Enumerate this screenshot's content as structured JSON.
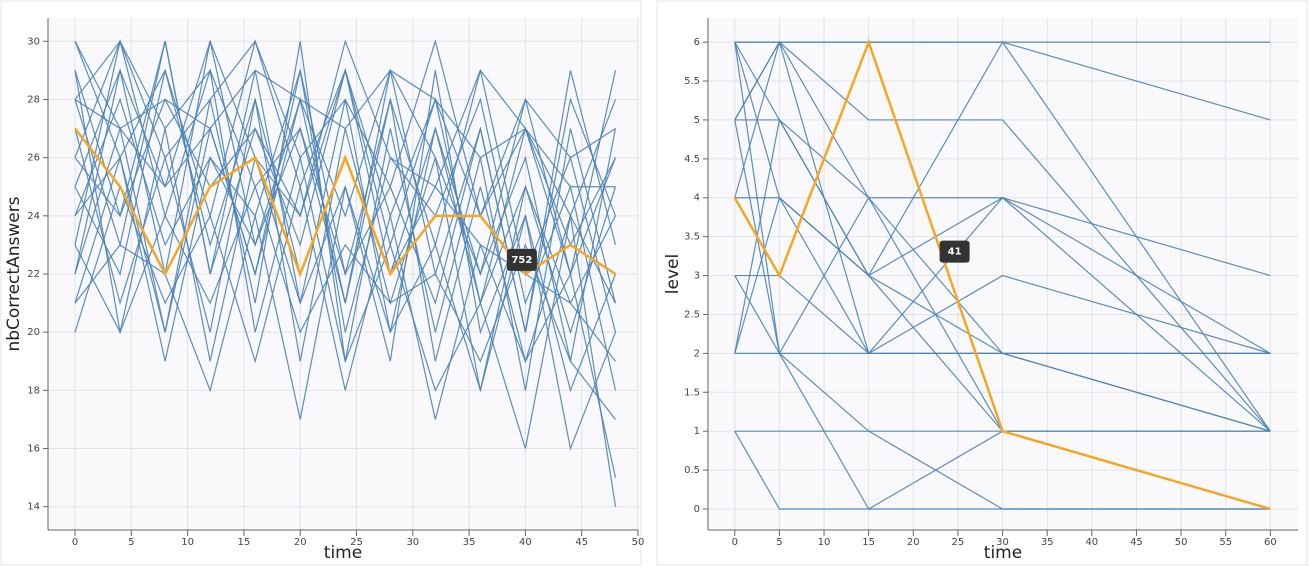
{
  "chart_data": [
    {
      "type": "line",
      "x_label": "time",
      "y_label": "nbCorrectAnswers",
      "x": [
        0,
        4,
        8,
        12,
        16,
        20,
        24,
        28,
        32,
        36,
        40,
        44,
        48
      ],
      "xlim": [
        -2.4,
        50
      ],
      "xticks": [
        0,
        5,
        10,
        15,
        20,
        25,
        30,
        35,
        40,
        45,
        50
      ],
      "ylim": [
        13.2,
        30.8
      ],
      "yticks": [
        14,
        16,
        18,
        20,
        22,
        24,
        26,
        28,
        30
      ],
      "grid": true,
      "color": "#4a82b4",
      "series": [
        {
          "values": [
            30,
            26,
            29,
            24,
            30,
            25,
            29,
            23,
            28,
            24,
            27,
            22,
            29
          ]
        },
        {
          "values": [
            28,
            23,
            30,
            22,
            29,
            21,
            28,
            20,
            27,
            22,
            26,
            19,
            27
          ]
        },
        {
          "values": [
            25,
            29,
            22,
            30,
            23,
            28,
            21,
            29,
            22,
            27,
            20,
            28,
            24
          ]
        },
        {
          "values": [
            22,
            27,
            20,
            28,
            21,
            30,
            19,
            27,
            20,
            26,
            18,
            27,
            21
          ]
        },
        {
          "values": [
            29,
            24,
            28,
            25,
            27,
            23,
            29,
            24,
            28,
            21,
            27,
            23,
            26
          ]
        },
        {
          "values": [
            26,
            30,
            24,
            29,
            25,
            27,
            22,
            28,
            23,
            29,
            22,
            26,
            20
          ]
        },
        {
          "values": [
            21,
            26,
            20,
            27,
            22,
            29,
            20,
            26,
            24,
            28,
            21,
            25,
            18
          ]
        },
        {
          "values": [
            27,
            21,
            26,
            20,
            28,
            19,
            27,
            21,
            26,
            18,
            25,
            20,
            25
          ]
        },
        {
          "values": [
            24,
            28,
            23,
            26,
            24,
            29,
            22,
            25,
            21,
            27,
            20,
            29,
            23
          ]
        },
        {
          "values": [
            30,
            27,
            25,
            30,
            26,
            24,
            30,
            26,
            25,
            29,
            27,
            24,
            28
          ]
        },
        {
          "values": [
            23,
            20,
            27,
            19,
            26,
            21,
            25,
            19,
            29,
            20,
            24,
            18,
            22
          ]
        },
        {
          "values": [
            20,
            25,
            21,
            24,
            19,
            25,
            18,
            24,
            17,
            23,
            19,
            22,
            15
          ]
        },
        {
          "values": [
            28,
            30,
            26,
            28,
            30,
            26,
            28,
            25,
            30,
            24,
            28,
            26,
            27
          ]
        },
        {
          "values": [
            25,
            22,
            29,
            23,
            28,
            22,
            26,
            22,
            25,
            23,
            22,
            21,
            19
          ]
        },
        {
          "values": [
            22,
            29,
            25,
            27,
            22,
            28,
            24,
            29,
            26,
            22,
            28,
            22,
            26
          ]
        },
        {
          "values": [
            29,
            20,
            24,
            21,
            25,
            20,
            23,
            21,
            22,
            19,
            23,
            19,
            17
          ]
        },
        {
          "values": [
            26,
            24,
            30,
            22,
            27,
            24,
            29,
            22,
            27,
            21,
            25,
            21,
            24
          ]
        },
        {
          "values": [
            24,
            26,
            19,
            26,
            23,
            27,
            21,
            28,
            19,
            25,
            19,
            24,
            14
          ]
        },
        {
          "values": [
            21,
            23,
            22,
            18,
            24,
            17,
            25,
            20,
            23,
            18,
            24,
            16,
            20
          ]
        },
        {
          "values": [
            28,
            27,
            28,
            27,
            29,
            28,
            27,
            29,
            28,
            26,
            27,
            25,
            25
          ]
        },
        {
          "values": [
            23,
            30,
            27,
            29,
            20,
            26,
            19,
            23,
            18,
            21,
            16,
            24,
            21
          ]
        },
        {
          "name": "752",
          "color": "#f5a623",
          "values": [
            27,
            25,
            22,
            25,
            26,
            22,
            26,
            22,
            24,
            24,
            22,
            23,
            22
          ]
        }
      ]
    },
    {
      "type": "line",
      "x_label": "time",
      "y_label": "level",
      "x": [
        0,
        5,
        15,
        30,
        60
      ],
      "xlim": [
        -3,
        63.1
      ],
      "xticks": [
        0,
        5,
        10,
        15,
        20,
        25,
        30,
        35,
        40,
        45,
        50,
        55,
        60
      ],
      "ylim": [
        -0.27,
        6.31
      ],
      "yticks": [
        0,
        0.5,
        1,
        1.5,
        2,
        2.5,
        3,
        3.5,
        4,
        4.5,
        5,
        5.5,
        6
      ],
      "grid": true,
      "color": "#4a82b4",
      "series": [
        {
          "values": [
            6,
            6,
            6,
            6,
            6
          ]
        },
        {
          "values": [
            6,
            6,
            6,
            6,
            5
          ]
        },
        {
          "values": [
            6,
            5,
            4,
            2,
            1
          ]
        },
        {
          "values": [
            5,
            5,
            3,
            2,
            1
          ]
        },
        {
          "values": [
            5,
            6,
            4,
            4,
            3
          ]
        },
        {
          "values": [
            4,
            4,
            3,
            4,
            2
          ]
        },
        {
          "values": [
            4,
            6,
            5,
            5,
            1
          ]
        },
        {
          "values": [
            3,
            3,
            2,
            2,
            2
          ]
        },
        {
          "values": [
            3,
            2,
            4,
            1,
            0
          ]
        },
        {
          "values": [
            2,
            2,
            2,
            2,
            2
          ]
        },
        {
          "values": [
            2,
            4,
            3,
            1,
            1
          ]
        },
        {
          "values": [
            1,
            1,
            1,
            1,
            1
          ]
        },
        {
          "values": [
            1,
            0,
            0,
            0,
            0
          ]
        },
        {
          "values": [
            6,
            2,
            1,
            0,
            0
          ]
        },
        {
          "values": [
            5,
            2,
            0,
            1,
            0
          ]
        },
        {
          "values": [
            6,
            4,
            2,
            3,
            2
          ]
        },
        {
          "values": [
            5,
            6,
            2,
            4,
            1
          ]
        },
        {
          "values": [
            2,
            5,
            3,
            6,
            1
          ]
        },
        {
          "name": "41",
          "color": "#f5a623",
          "values": [
            4,
            3,
            6,
            1,
            0
          ]
        }
      ]
    }
  ]
}
